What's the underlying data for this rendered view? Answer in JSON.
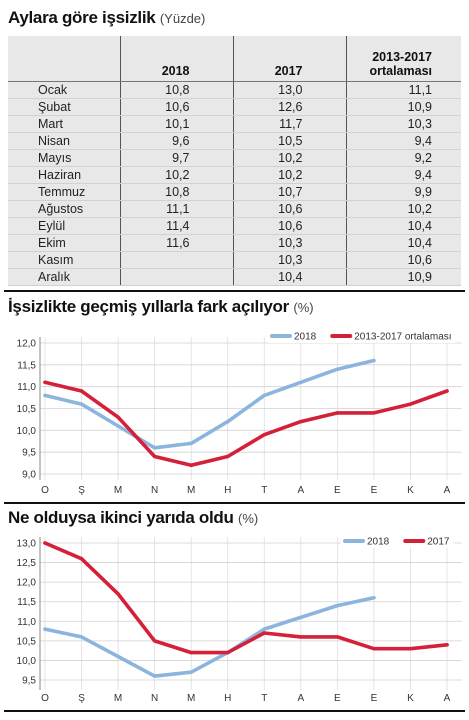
{
  "chart_data": [
    {
      "type": "table",
      "title": "Aylara göre işsizlik",
      "unit": "(Yüzde)",
      "columns": [
        "",
        "2018",
        "2017",
        "2013-2017\nortalaması"
      ],
      "rows": [
        [
          "Ocak",
          "10,8",
          "13,0",
          "11,1"
        ],
        [
          "Şubat",
          "10,6",
          "12,6",
          "10,9"
        ],
        [
          "Mart",
          "10,1",
          "11,7",
          "10,3"
        ],
        [
          "Nisan",
          "9,6",
          "10,5",
          "9,4"
        ],
        [
          "Mayıs",
          "9,7",
          "10,2",
          "9,2"
        ],
        [
          "Haziran",
          "10,2",
          "10,2",
          "9,4"
        ],
        [
          "Temmuz",
          "10,8",
          "10,7",
          "9,9"
        ],
        [
          "Ağustos",
          "11,1",
          "10,6",
          "10,2"
        ],
        [
          "Eylül",
          "11,4",
          "10,6",
          "10,4"
        ],
        [
          "Ekim",
          "11,6",
          "10,3",
          "10,4"
        ],
        [
          "Kasım",
          "",
          "10,3",
          "10,6"
        ],
        [
          "Aralık",
          "",
          "10,4",
          "10,9"
        ]
      ]
    },
    {
      "type": "line",
      "title": "İşsizlikte geçmiş yıllarla fark açılıyor",
      "unit": "(%)",
      "categories": [
        "O",
        "Ş",
        "M",
        "N",
        "M",
        "H",
        "T",
        "A",
        "E",
        "E",
        "K",
        "A"
      ],
      "ytick_labels": [
        "12,0",
        "11,5",
        "11,0",
        "10,5",
        "10,0",
        "9,5",
        "9,0"
      ],
      "ylim": [
        9.0,
        12.0
      ],
      "grid": true,
      "legend": "top-right",
      "series": [
        {
          "name": "2018",
          "color": "#8cb5de",
          "values": [
            10.8,
            10.6,
            10.1,
            9.6,
            9.7,
            10.2,
            10.8,
            11.1,
            11.4,
            11.6,
            null,
            null
          ]
        },
        {
          "name": "2013-2017 ortalaması",
          "color": "#d42039",
          "values": [
            11.1,
            10.9,
            10.3,
            9.4,
            9.2,
            9.4,
            9.9,
            10.2,
            10.4,
            10.4,
            10.6,
            10.9
          ]
        }
      ]
    },
    {
      "type": "line",
      "title": "Ne olduysa ikinci yarıda oldu",
      "unit": "(%)",
      "categories": [
        "O",
        "Ş",
        "M",
        "N",
        "M",
        "H",
        "T",
        "A",
        "E",
        "E",
        "K",
        "A"
      ],
      "ytick_labels": [
        "13,0",
        "12,5",
        "12,0",
        "11,5",
        "11,0",
        "10,5",
        "10,0",
        "9,5"
      ],
      "ylim": [
        9.5,
        13.0
      ],
      "grid": true,
      "legend": "top-right",
      "series": [
        {
          "name": "2018",
          "color": "#8cb5de",
          "values": [
            10.8,
            10.6,
            10.1,
            9.6,
            9.7,
            10.2,
            10.8,
            11.1,
            11.4,
            11.6,
            null,
            null
          ]
        },
        {
          "name": "2017",
          "color": "#d42039",
          "values": [
            13.0,
            12.6,
            11.7,
            10.5,
            10.2,
            10.2,
            10.7,
            10.6,
            10.6,
            10.3,
            10.3,
            10.4
          ]
        }
      ]
    }
  ]
}
